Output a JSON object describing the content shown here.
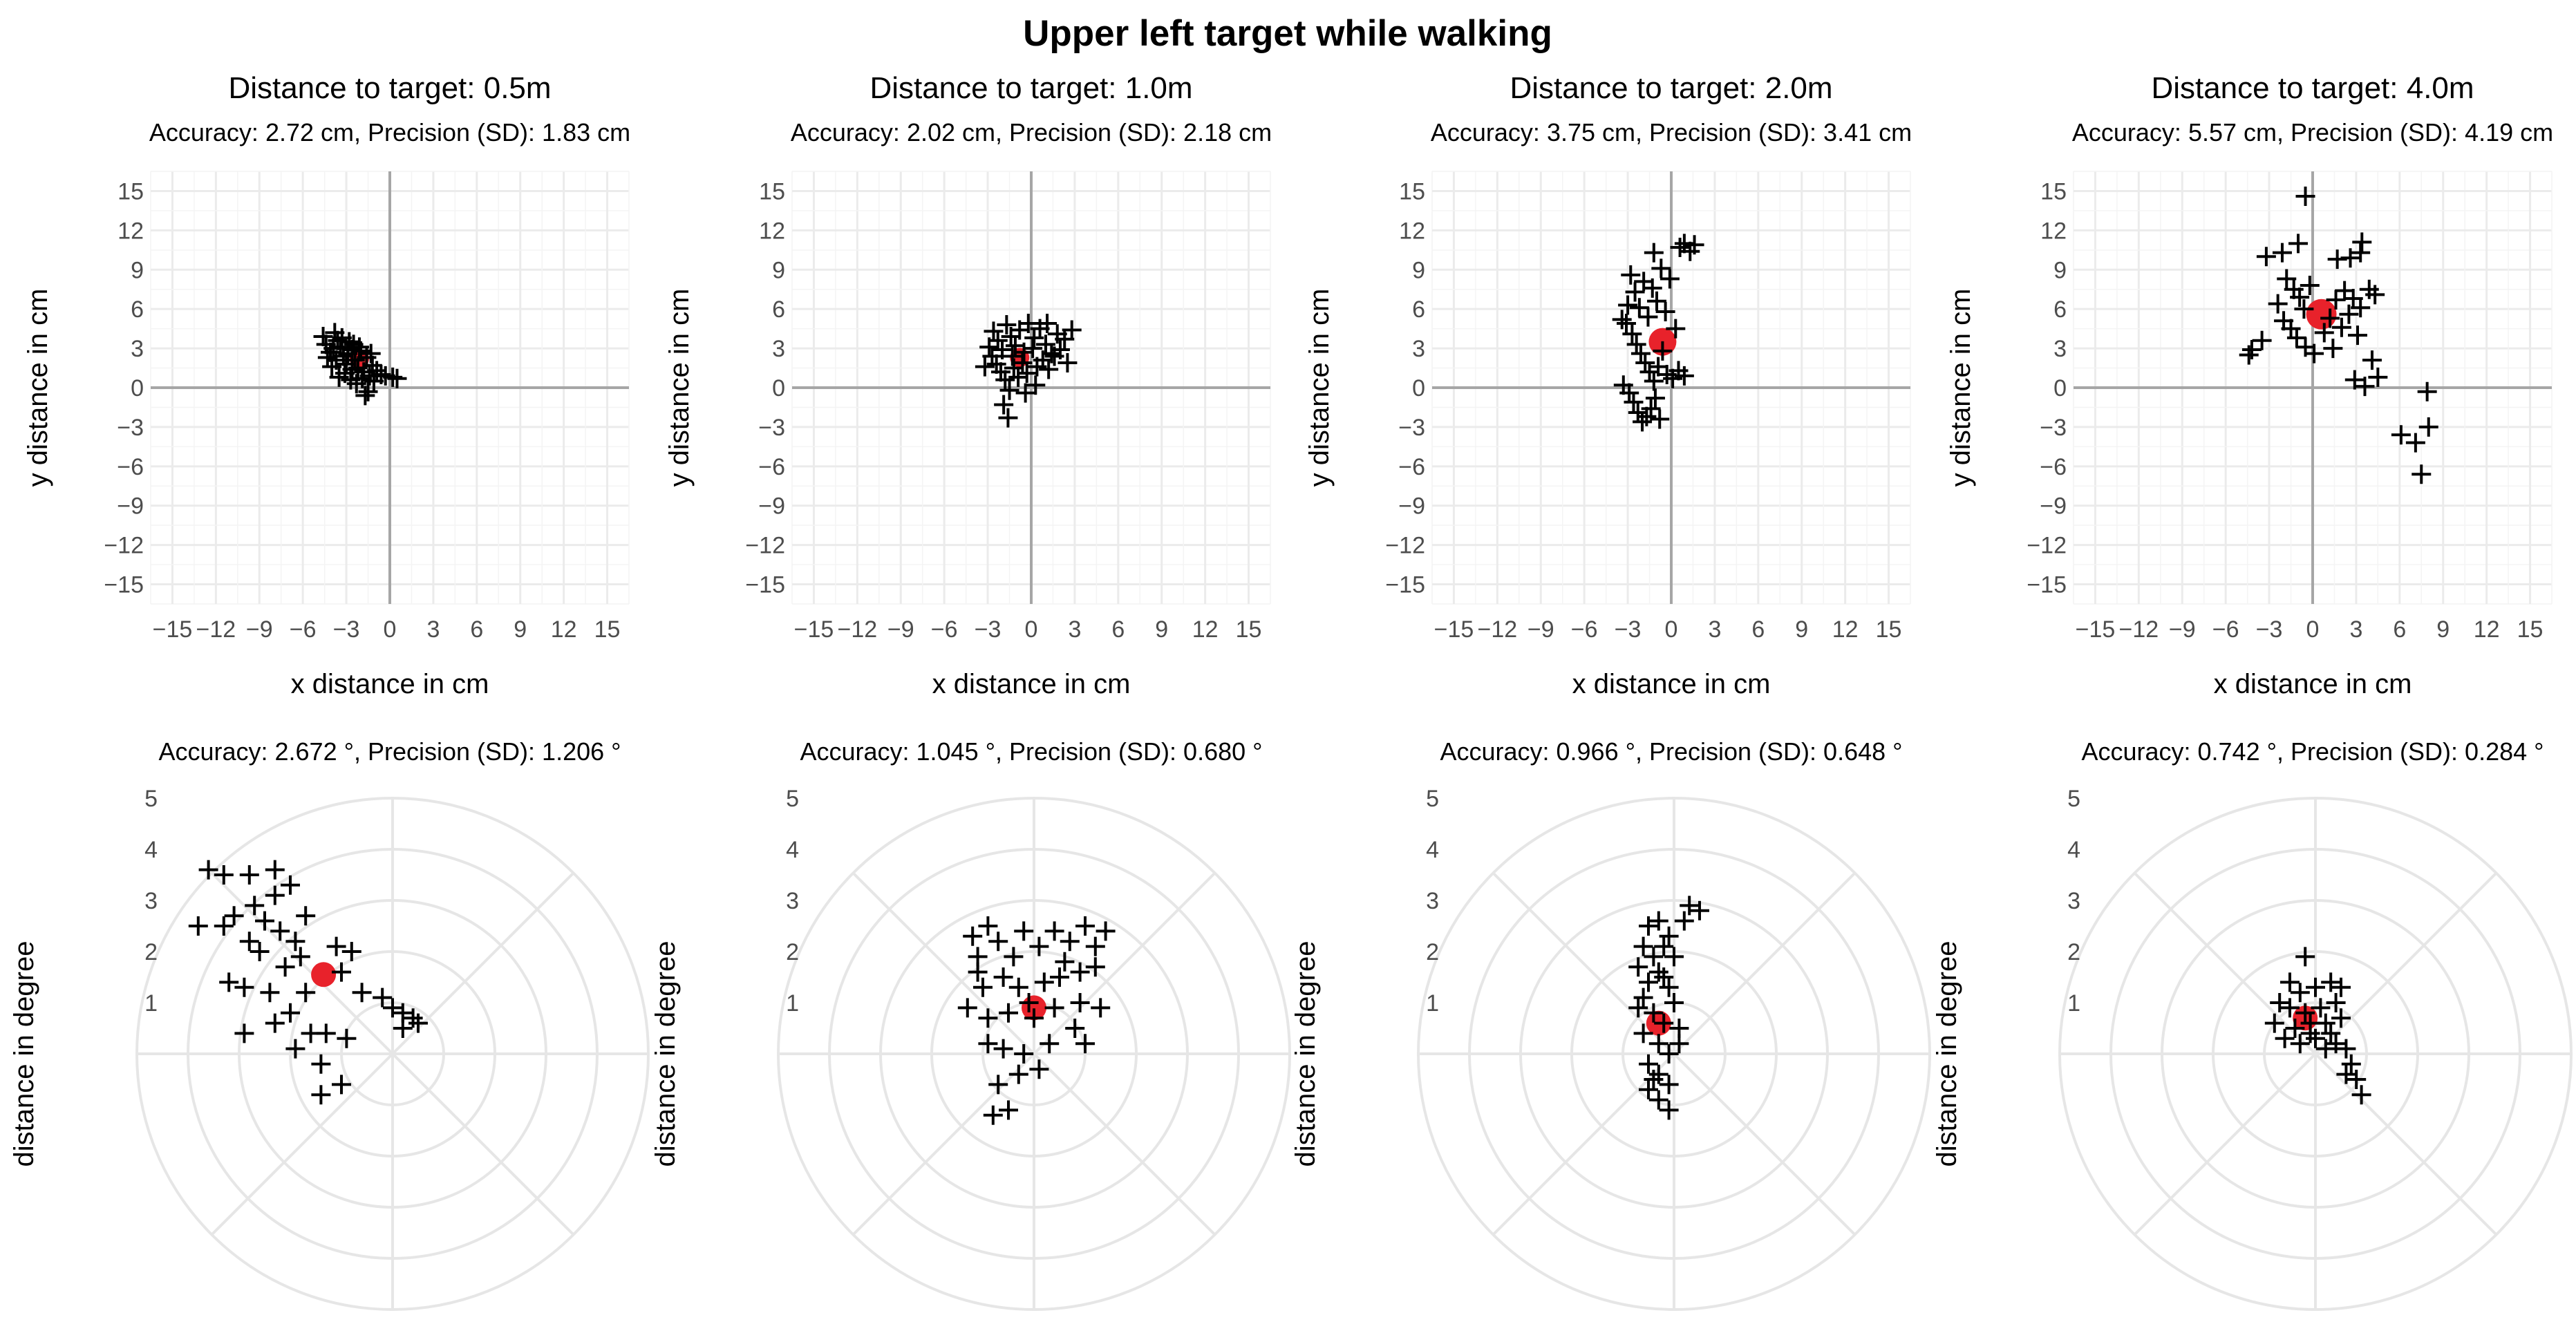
{
  "figure": {
    "title": "Upper left target while walking"
  },
  "chart_data": [
    {
      "type": "scatter",
      "title": "Distance to target: 0.5m",
      "subtitle": "Accuracy: 2.72 cm, Precision (SD): 1.83 cm",
      "xlabel": "x distance in cm",
      "ylabel": "y distance in cm",
      "xlim": [
        -16.5,
        16.5
      ],
      "ylim": [
        -16.5,
        16.5
      ],
      "ticks": [
        -15,
        -12,
        -9,
        -6,
        -3,
        0,
        3,
        6,
        9,
        12,
        15
      ],
      "tick_labels": [
        "−15",
        "−12",
        "−9",
        "−6",
        "−3",
        "0",
        "3",
        "6",
        "9",
        "12",
        "15"
      ],
      "grid": true,
      "mean": [
        -2.1,
        2.2
      ],
      "points": [
        [
          -4.6,
          3.9
        ],
        [
          -4.4,
          3.3
        ],
        [
          -4.1,
          2.7
        ],
        [
          -3.8,
          4.2
        ],
        [
          -3.6,
          3.6
        ],
        [
          -3.4,
          3.1
        ],
        [
          -3.2,
          2.4
        ],
        [
          -3.0,
          1.8
        ],
        [
          -2.8,
          3.5
        ],
        [
          -2.6,
          2.9
        ],
        [
          -2.4,
          2.1
        ],
        [
          -2.2,
          1.5
        ],
        [
          -2.0,
          2.8
        ],
        [
          -1.8,
          1.2
        ],
        [
          -1.6,
          2.3
        ],
        [
          -1.4,
          0.9
        ],
        [
          -3.7,
          2.1
        ],
        [
          -4.0,
          1.6
        ],
        [
          -3.5,
          0.8
        ],
        [
          -3.1,
          1.1
        ],
        [
          -2.7,
          0.6
        ],
        [
          -2.3,
          0.3
        ],
        [
          -1.9,
          0.7
        ],
        [
          -1.5,
          -0.3
        ],
        [
          -1.2,
          1.7
        ],
        [
          -0.9,
          1.3
        ],
        [
          -0.6,
          1.0
        ],
        [
          -0.3,
          0.9
        ],
        [
          0.2,
          0.8
        ],
        [
          0.5,
          0.7
        ],
        [
          -1.7,
          -0.6
        ],
        [
          -2.5,
          3.3
        ],
        [
          -3.3,
          3.8
        ],
        [
          -4.3,
          2.3
        ],
        [
          -2.9,
          2.6
        ],
        [
          -2.1,
          3.1
        ],
        [
          -1.3,
          2.6
        ],
        [
          -3.9,
          3.0
        ],
        [
          -2.6,
          1.4
        ],
        [
          -1.1,
          0.5
        ]
      ]
    },
    {
      "type": "scatter",
      "title": "Distance to target: 1.0m",
      "subtitle": "Accuracy: 2.02 cm, Precision (SD): 2.18 cm",
      "xlabel": "x distance in cm",
      "ylabel": "y distance in cm",
      "xlim": [
        -16.5,
        16.5
      ],
      "ylim": [
        -16.5,
        16.5
      ],
      "ticks": [
        -15,
        -12,
        -9,
        -6,
        -3,
        0,
        3,
        6,
        9,
        12,
        15
      ],
      "tick_labels": [
        "−15",
        "−12",
        "−9",
        "−6",
        "−3",
        "0",
        "3",
        "6",
        "9",
        "12",
        "15"
      ],
      "grid": true,
      "mean": [
        -0.8,
        2.3
      ],
      "points": [
        [
          -2.6,
          4.3
        ],
        [
          -2.3,
          3.6
        ],
        [
          -2.0,
          2.9
        ],
        [
          -1.7,
          4.8
        ],
        [
          -1.4,
          3.9
        ],
        [
          -1.1,
          3.2
        ],
        [
          -0.8,
          4.4
        ],
        [
          -0.5,
          2.7
        ],
        [
          -0.2,
          4.9
        ],
        [
          0.2,
          3.8
        ],
        [
          0.6,
          4.5
        ],
        [
          1.0,
          3.3
        ],
        [
          1.4,
          2.6
        ],
        [
          1.8,
          4.1
        ],
        [
          2.3,
          3.7
        ],
        [
          2.8,
          4.4
        ],
        [
          -2.4,
          1.8
        ],
        [
          -2.1,
          1.2
        ],
        [
          -1.8,
          0.6
        ],
        [
          -1.5,
          -0.2
        ],
        [
          -1.2,
          1.5
        ],
        [
          -0.9,
          0.8
        ],
        [
          -0.6,
          1.9
        ],
        [
          -0.3,
          1.1
        ],
        [
          0.4,
          1.6
        ],
        [
          0.8,
          2.1
        ],
        [
          1.2,
          1.4
        ],
        [
          1.6,
          2.4
        ],
        [
          2.0,
          2.9
        ],
        [
          2.5,
          1.9
        ],
        [
          -1.9,
          -1.3
        ],
        [
          -1.6,
          -2.3
        ],
        [
          -2.9,
          3.1
        ],
        [
          -3.2,
          1.6
        ],
        [
          -1.3,
          2.4
        ],
        [
          0.1,
          3.0
        ],
        [
          -0.4,
          -0.4
        ],
        [
          0.3,
          0.2
        ],
        [
          1.1,
          4.9
        ],
        [
          -2.7,
          2.4
        ]
      ]
    },
    {
      "type": "scatter",
      "title": "Distance to target: 2.0m",
      "subtitle": "Accuracy: 3.75 cm, Precision (SD): 3.41 cm",
      "xlabel": "x distance in cm",
      "ylabel": "y distance in cm",
      "xlim": [
        -16.5,
        16.5
      ],
      "ylim": [
        -16.5,
        16.5
      ],
      "ticks": [
        -15,
        -12,
        -9,
        -6,
        -3,
        0,
        3,
        6,
        9,
        12,
        15
      ],
      "tick_labels": [
        "−15",
        "−12",
        "−9",
        "−6",
        "−3",
        "0",
        "3",
        "6",
        "9",
        "12",
        "15"
      ],
      "grid": true,
      "mean": [
        -0.6,
        3.5
      ],
      "points": [
        [
          -2.8,
          8.6
        ],
        [
          -2.5,
          7.3
        ],
        [
          -2.2,
          6.1
        ],
        [
          -1.9,
          8.1
        ],
        [
          -1.6,
          5.4
        ],
        [
          -1.3,
          7.6
        ],
        [
          -1.0,
          6.6
        ],
        [
          -0.7,
          9.1
        ],
        [
          -0.4,
          5.8
        ],
        [
          -0.1,
          8.3
        ],
        [
          -3.1,
          4.9
        ],
        [
          -2.7,
          4.1
        ],
        [
          -2.4,
          3.3
        ],
        [
          -2.1,
          2.6
        ],
        [
          -1.8,
          1.9
        ],
        [
          -1.5,
          1.2
        ],
        [
          -1.2,
          0.5
        ],
        [
          -0.9,
          1.6
        ],
        [
          -0.6,
          2.8
        ],
        [
          -0.3,
          1.0
        ],
        [
          0.1,
          0.7
        ],
        [
          0.5,
          1.3
        ],
        [
          0.9,
          0.9
        ],
        [
          -3.3,
          0.2
        ],
        [
          -2.9,
          -0.4
        ],
        [
          -2.6,
          -1.1
        ],
        [
          -2.3,
          -1.9
        ],
        [
          -2.0,
          -2.6
        ],
        [
          -1.7,
          -2.2
        ],
        [
          -1.4,
          -1.6
        ],
        [
          -1.1,
          -0.8
        ],
        [
          -0.8,
          -2.4
        ],
        [
          0.6,
          10.7
        ],
        [
          0.9,
          11.0
        ],
        [
          1.3,
          10.4
        ],
        [
          1.6,
          10.9
        ],
        [
          -1.2,
          10.3
        ],
        [
          -3.0,
          6.3
        ],
        [
          0.3,
          4.5
        ],
        [
          -3.4,
          5.2
        ]
      ]
    },
    {
      "type": "scatter",
      "title": "Distance to target: 4.0m",
      "subtitle": "Accuracy: 5.57 cm, Precision (SD): 4.19 cm",
      "xlabel": "x distance in cm",
      "ylabel": "y distance in cm",
      "xlim": [
        -16.5,
        16.5
      ],
      "ylim": [
        -16.5,
        16.5
      ],
      "ticks": [
        -15,
        -12,
        -9,
        -6,
        -3,
        0,
        3,
        6,
        9,
        12,
        15
      ],
      "tick_labels": [
        "−15",
        "−12",
        "−9",
        "−6",
        "−3",
        "0",
        "3",
        "6",
        "9",
        "12",
        "15"
      ],
      "grid": true,
      "mean": [
        0.6,
        5.6
      ],
      "points": [
        [
          -0.5,
          14.6
        ],
        [
          -3.2,
          10.0
        ],
        [
          -2.1,
          10.3
        ],
        [
          -1.0,
          11.0
        ],
        [
          2.6,
          9.9
        ],
        [
          3.4,
          11.1
        ],
        [
          1.7,
          9.8
        ],
        [
          3.3,
          10.3
        ],
        [
          -1.8,
          8.3
        ],
        [
          -1.3,
          7.5
        ],
        [
          -0.9,
          6.9
        ],
        [
          -0.6,
          6.0
        ],
        [
          -0.2,
          7.8
        ],
        [
          -2.4,
          6.4
        ],
        [
          -2.0,
          5.1
        ],
        [
          -1.5,
          4.5
        ],
        [
          -1.1,
          3.8
        ],
        [
          -0.5,
          3.1
        ],
        [
          0.1,
          2.6
        ],
        [
          0.8,
          4.2
        ],
        [
          1.2,
          5.3
        ],
        [
          1.6,
          6.7
        ],
        [
          2.2,
          7.4
        ],
        [
          2.8,
          6.8
        ],
        [
          3.3,
          6.1
        ],
        [
          3.9,
          7.5
        ],
        [
          4.3,
          7.1
        ],
        [
          2.5,
          5.6
        ],
        [
          2.0,
          4.6
        ],
        [
          3.1,
          4.0
        ],
        [
          4.1,
          2.1
        ],
        [
          2.9,
          0.6
        ],
        [
          4.5,
          0.8
        ],
        [
          -4.2,
          2.9
        ],
        [
          -4.4,
          2.5
        ],
        [
          -3.5,
          3.6
        ],
        [
          7.9,
          -0.3
        ],
        [
          6.1,
          -3.6
        ],
        [
          7.1,
          -4.2
        ],
        [
          8.0,
          -3.0
        ],
        [
          7.5,
          -6.6
        ],
        [
          3.6,
          0.1
        ],
        [
          1.4,
          3.0
        ]
      ]
    },
    {
      "type": "polar-scatter",
      "title": "Accuracy: 2.672 °, Precision (SD): 1.206 °",
      "ylabel": "distance in degree",
      "r_ticks": [
        1,
        2,
        3,
        4,
        5
      ],
      "rmax": 5,
      "mean": [
        -1.35,
        1.55
      ],
      "points": [
        [
          -3.6,
          3.6
        ],
        [
          -3.3,
          3.5
        ],
        [
          -2.8,
          3.5
        ],
        [
          -2.3,
          3.6
        ],
        [
          -2.0,
          3.3
        ],
        [
          -2.3,
          3.1
        ],
        [
          -2.7,
          2.9
        ],
        [
          -3.1,
          2.7
        ],
        [
          -2.5,
          2.6
        ],
        [
          -3.3,
          2.5
        ],
        [
          -2.2,
          2.4
        ],
        [
          -3.8,
          2.5
        ],
        [
          -1.9,
          2.2
        ],
        [
          -2.8,
          2.2
        ],
        [
          -2.6,
          2.0
        ],
        [
          -1.7,
          2.7
        ],
        [
          -3.2,
          1.4
        ],
        [
          -2.9,
          1.3
        ],
        [
          -2.4,
          1.2
        ],
        [
          -1.7,
          1.2
        ],
        [
          -2.0,
          0.8
        ],
        [
          -1.6,
          0.4
        ],
        [
          -2.3,
          0.6
        ],
        [
          -2.9,
          0.4
        ],
        [
          -1.9,
          0.1
        ],
        [
          -1.3,
          0.4
        ],
        [
          -0.9,
          0.3
        ],
        [
          -1.4,
          -0.2
        ],
        [
          -1.0,
          -0.6
        ],
        [
          -1.4,
          -0.8
        ],
        [
          -0.6,
          1.2
        ],
        [
          -0.2,
          1.1
        ],
        [
          0.0,
          0.9
        ],
        [
          0.2,
          0.8
        ],
        [
          0.4,
          0.7
        ],
        [
          0.5,
          0.6
        ],
        [
          0.2,
          0.5
        ],
        [
          -0.8,
          2.0
        ],
        [
          -1.0,
          1.6
        ],
        [
          -1.1,
          2.1
        ],
        [
          -2.1,
          1.7
        ],
        [
          -1.8,
          1.9
        ]
      ]
    },
    {
      "type": "polar-scatter",
      "title": "Accuracy: 1.045 °, Precision (SD): 0.680 °",
      "ylabel": "distance in degree",
      "r_ticks": [
        1,
        2,
        3,
        4,
        5
      ],
      "rmax": 5,
      "mean": [
        0.0,
        0.9
      ],
      "points": [
        [
          -1.2,
          2.3
        ],
        [
          -1.1,
          1.9
        ],
        [
          -0.9,
          2.5
        ],
        [
          -0.7,
          2.2
        ],
        [
          -0.4,
          1.9
        ],
        [
          -0.2,
          2.4
        ],
        [
          0.1,
          2.1
        ],
        [
          0.4,
          2.4
        ],
        [
          0.7,
          2.2
        ],
        [
          1.0,
          2.5
        ],
        [
          1.2,
          2.1
        ],
        [
          1.4,
          2.4
        ],
        [
          1.2,
          1.7
        ],
        [
          0.9,
          1.6
        ],
        [
          0.5,
          1.5
        ],
        [
          0.2,
          1.4
        ],
        [
          -0.3,
          1.3
        ],
        [
          -0.6,
          1.5
        ],
        [
          -1.0,
          1.3
        ],
        [
          -1.3,
          0.9
        ],
        [
          -0.9,
          0.7
        ],
        [
          -0.5,
          0.8
        ],
        [
          0.0,
          0.7
        ],
        [
          0.4,
          0.9
        ],
        [
          0.9,
          1.0
        ],
        [
          1.3,
          0.9
        ],
        [
          -0.9,
          0.2
        ],
        [
          -0.6,
          0.1
        ],
        [
          -0.2,
          0.0
        ],
        [
          0.3,
          0.2
        ],
        [
          0.8,
          0.5
        ],
        [
          1.0,
          0.2
        ],
        [
          -0.7,
          -0.6
        ],
        [
          -0.5,
          -1.1
        ],
        [
          -0.8,
          -1.2
        ],
        [
          -0.3,
          -0.4
        ],
        [
          0.1,
          -0.3
        ],
        [
          -1.1,
          1.6
        ],
        [
          0.6,
          1.8
        ],
        [
          -0.1,
          1.0
        ]
      ]
    },
    {
      "type": "polar-scatter",
      "title": "Accuracy: 0.966 °, Precision (SD): 0.648 °",
      "ylabel": "distance in degree",
      "r_ticks": [
        1,
        2,
        3,
        4,
        5
      ],
      "rmax": 5,
      "mean": [
        -0.3,
        0.6
      ],
      "points": [
        [
          -0.5,
          2.5
        ],
        [
          -0.3,
          2.6
        ],
        [
          -0.1,
          2.3
        ],
        [
          0.2,
          2.6
        ],
        [
          0.3,
          2.9
        ],
        [
          0.5,
          2.8
        ],
        [
          -0.6,
          2.1
        ],
        [
          -0.4,
          1.9
        ],
        [
          -0.7,
          1.7
        ],
        [
          -0.5,
          1.4
        ],
        [
          -0.3,
          1.6
        ],
        [
          -0.1,
          1.3
        ],
        [
          -0.6,
          1.1
        ],
        [
          -0.4,
          0.8
        ],
        [
          -0.2,
          0.6
        ],
        [
          -0.6,
          0.4
        ],
        [
          -0.3,
          0.2
        ],
        [
          -0.1,
          0.0
        ],
        [
          0.1,
          0.2
        ],
        [
          0.1,
          0.5
        ],
        [
          -0.5,
          -0.2
        ],
        [
          -0.3,
          -0.4
        ],
        [
          -0.1,
          -0.6
        ],
        [
          -0.5,
          -0.7
        ],
        [
          -0.3,
          -0.9
        ],
        [
          -0.1,
          -1.1
        ],
        [
          -0.4,
          -0.5
        ],
        [
          0.0,
          1.9
        ],
        [
          -0.2,
          2.1
        ],
        [
          -0.7,
          0.9
        ],
        [
          0.0,
          1.0
        ],
        [
          -0.2,
          1.5
        ]
      ]
    },
    {
      "type": "polar-scatter",
      "title": "Accuracy: 0.742 °, Precision (SD): 0.284 °",
      "ylabel": "distance in degree",
      "r_ticks": [
        1,
        2,
        3,
        4,
        5
      ],
      "rmax": 5,
      "mean": [
        -0.2,
        0.7
      ],
      "points": [
        [
          -0.2,
          1.9
        ],
        [
          -0.5,
          1.4
        ],
        [
          -0.3,
          1.2
        ],
        [
          0.0,
          1.3
        ],
        [
          0.3,
          1.4
        ],
        [
          0.5,
          1.3
        ],
        [
          -0.7,
          1.0
        ],
        [
          -0.5,
          0.9
        ],
        [
          -0.2,
          0.8
        ],
        [
          0.1,
          0.9
        ],
        [
          0.4,
          1.0
        ],
        [
          -0.8,
          0.6
        ],
        [
          -0.4,
          0.5
        ],
        [
          -0.1,
          0.4
        ],
        [
          0.2,
          0.6
        ],
        [
          0.5,
          0.7
        ],
        [
          -0.6,
          0.3
        ],
        [
          -0.3,
          0.2
        ],
        [
          0.0,
          0.3
        ],
        [
          0.3,
          0.4
        ],
        [
          0.6,
          0.1
        ],
        [
          0.7,
          -0.2
        ],
        [
          0.8,
          -0.5
        ],
        [
          0.9,
          -0.8
        ],
        [
          0.6,
          -0.4
        ],
        [
          0.4,
          0.2
        ],
        [
          0.2,
          0.1
        ],
        [
          -0.1,
          0.6
        ]
      ]
    }
  ]
}
